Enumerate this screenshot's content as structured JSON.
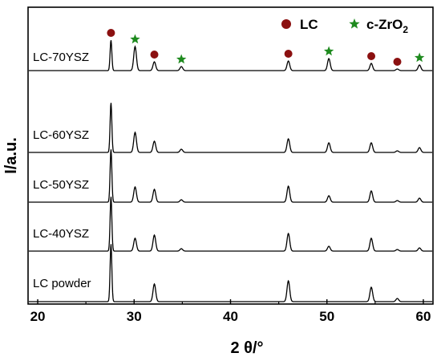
{
  "chart_data": {
    "type": "line",
    "title": "",
    "xlabel": "2 θ/°",
    "ylabel": "I/a.u.",
    "xlim": [
      19,
      61
    ],
    "xticks": [
      20,
      30,
      40,
      50,
      60
    ],
    "yticks_shown": false,
    "grid": false,
    "legend": {
      "placement": "top-right",
      "entries": [
        {
          "label": "LC",
          "marker": "circle",
          "color": "#8b1010"
        },
        {
          "label": "c-ZrO",
          "subscript": "2",
          "marker": "star",
          "color": "#1e8a1e"
        }
      ]
    },
    "line_color": "#000000",
    "series": [
      {
        "name": "LC powder",
        "peaks": [
          {
            "x": 27.6,
            "height": 72
          },
          {
            "x": 32.1,
            "height": 22
          },
          {
            "x": 46.0,
            "height": 26
          },
          {
            "x": 54.6,
            "height": 18
          },
          {
            "x": 57.3,
            "height": 4
          }
        ]
      },
      {
        "name": "LC-40YSZ",
        "peaks": [
          {
            "x": 27.6,
            "height": 68
          },
          {
            "x": 30.1,
            "height": 16
          },
          {
            "x": 32.1,
            "height": 20
          },
          {
            "x": 34.9,
            "height": 3
          },
          {
            "x": 46.0,
            "height": 22
          },
          {
            "x": 50.2,
            "height": 6
          },
          {
            "x": 54.6,
            "height": 16
          },
          {
            "x": 57.3,
            "height": 2
          },
          {
            "x": 59.6,
            "height": 4
          }
        ]
      },
      {
        "name": "LC-50YSZ",
        "peaks": [
          {
            "x": 27.6,
            "height": 66
          },
          {
            "x": 30.1,
            "height": 19
          },
          {
            "x": 32.1,
            "height": 16
          },
          {
            "x": 34.9,
            "height": 3
          },
          {
            "x": 46.0,
            "height": 20
          },
          {
            "x": 50.2,
            "height": 8
          },
          {
            "x": 54.6,
            "height": 14
          },
          {
            "x": 57.3,
            "height": 2
          },
          {
            "x": 59.6,
            "height": 5
          }
        ]
      },
      {
        "name": "LC-60YSZ",
        "peaks": [
          {
            "x": 27.6,
            "height": 62
          },
          {
            "x": 30.1,
            "height": 25
          },
          {
            "x": 32.1,
            "height": 14
          },
          {
            "x": 34.9,
            "height": 4
          },
          {
            "x": 46.0,
            "height": 17
          },
          {
            "x": 50.2,
            "height": 12
          },
          {
            "x": 54.6,
            "height": 12
          },
          {
            "x": 57.3,
            "height": 2
          },
          {
            "x": 59.6,
            "height": 6
          }
        ]
      },
      {
        "name": "LC-70YSZ",
        "peaks": [
          {
            "x": 27.6,
            "height": 38
          },
          {
            "x": 30.1,
            "height": 30
          },
          {
            "x": 32.1,
            "height": 11
          },
          {
            "x": 34.9,
            "height": 5
          },
          {
            "x": 46.0,
            "height": 12
          },
          {
            "x": 50.2,
            "height": 15
          },
          {
            "x": 54.6,
            "height": 9
          },
          {
            "x": 57.3,
            "height": 2
          },
          {
            "x": 59.6,
            "height": 7
          }
        ]
      }
    ],
    "markers": [
      {
        "type": "circle",
        "x": 27.6
      },
      {
        "type": "star",
        "x": 30.1
      },
      {
        "type": "circle",
        "x": 32.1
      },
      {
        "type": "star",
        "x": 34.9
      },
      {
        "type": "circle",
        "x": 46.0
      },
      {
        "type": "star",
        "x": 50.2
      },
      {
        "type": "circle",
        "x": 54.6
      },
      {
        "type": "circle",
        "x": 57.3
      },
      {
        "type": "star",
        "x": 59.6
      }
    ]
  }
}
